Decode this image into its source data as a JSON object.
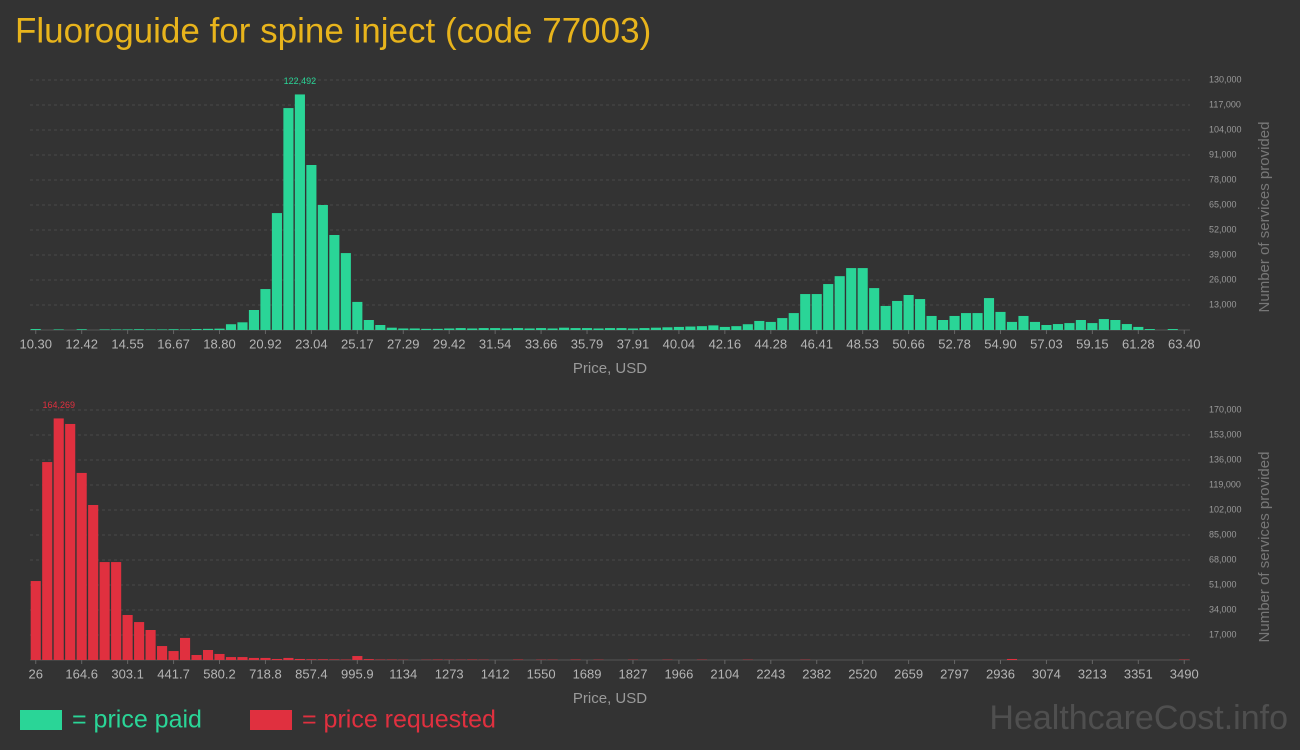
{
  "title": "Fluoroguide for spine inject (code 77003)",
  "watermark": "HealthcareCost.info",
  "chart_data": [
    {
      "type": "bar",
      "name": "= price paid",
      "color": "#2ad597",
      "xlabel": "Price, USD",
      "ylabel": "Number of services provided",
      "categories": [
        "10.30",
        null,
        null,
        null,
        "12.42",
        null,
        null,
        null,
        "14.55",
        null,
        null,
        null,
        "16.67",
        null,
        null,
        null,
        "18.80",
        null,
        null,
        null,
        "20.92",
        null,
        null,
        null,
        "23.04",
        null,
        null,
        null,
        "25.17",
        null,
        null,
        null,
        "27.29",
        null,
        null,
        null,
        "29.42",
        null,
        null,
        null,
        "31.54",
        null,
        null,
        null,
        "33.66",
        null,
        null,
        null,
        "35.79",
        null,
        null,
        null,
        "37.91",
        null,
        null,
        null,
        "40.04",
        null,
        null,
        null,
        "42.16",
        null,
        null,
        null,
        "44.28",
        null,
        null,
        null,
        "46.41",
        null,
        null,
        null,
        "48.53",
        null,
        null,
        null,
        "50.66",
        null,
        null,
        null,
        "52.78",
        null,
        null,
        null,
        "54.90",
        null,
        null,
        null,
        "57.03",
        null,
        null,
        null,
        "59.15",
        null,
        null,
        null,
        "61.28",
        null,
        null,
        null,
        "63.40"
      ],
      "values": [
        500,
        0,
        300,
        0,
        400,
        0,
        300,
        300,
        300,
        400,
        300,
        300,
        400,
        300,
        500,
        600,
        700,
        3000,
        4000,
        10400,
        21300,
        60800,
        115400,
        122492,
        85800,
        65000,
        49400,
        40000,
        14600,
        5200,
        2600,
        1200,
        800,
        800,
        600,
        600,
        800,
        1000,
        800,
        1000,
        1000,
        800,
        1000,
        800,
        1000,
        800,
        1200,
        1000,
        1000,
        800,
        1000,
        1000,
        800,
        1000,
        1200,
        1400,
        1600,
        1800,
        2000,
        2400,
        1600,
        2000,
        3000,
        4700,
        4200,
        6200,
        8800,
        18700,
        18700,
        23900,
        28000,
        32200,
        32200,
        21800,
        12500,
        15100,
        18200,
        16100,
        7300,
        5200,
        7300,
        8800,
        8800,
        16600,
        9400,
        4200,
        7300,
        4200,
        2600,
        3100,
        3600,
        5200,
        3600,
        5700,
        5200,
        3100,
        1600,
        500,
        0,
        500,
        0
      ],
      "value_labels": [
        null,
        null,
        null,
        null,
        null,
        null,
        null,
        null,
        null,
        null,
        null,
        null,
        null,
        null,
        null,
        null,
        null,
        null,
        null,
        null,
        null,
        null,
        null,
        "122,492",
        null,
        null,
        null,
        null,
        null,
        null,
        null,
        null,
        null,
        null,
        null,
        null,
        null,
        null,
        null,
        null,
        null,
        null,
        null,
        null,
        null,
        null,
        null,
        null,
        null,
        null,
        null,
        null,
        null,
        null,
        null,
        null,
        null,
        null,
        null,
        null,
        null,
        null,
        null,
        null,
        null,
        null,
        null,
        null,
        null,
        null,
        null,
        null,
        null,
        null,
        null,
        null,
        null,
        null,
        null,
        null,
        null,
        null,
        null,
        null,
        null,
        null,
        null,
        null,
        null,
        null,
        null,
        null,
        null,
        null,
        null,
        null,
        null,
        null,
        null,
        null,
        null
      ],
      "ylim": [
        0,
        130000
      ],
      "yticks": [
        {
          "value": 13000,
          "label": "13,000"
        },
        {
          "value": 26000,
          "label": "26,000"
        },
        {
          "value": 39000,
          "label": "39,000"
        },
        {
          "value": 52000,
          "label": "52,000"
        },
        {
          "value": 65000,
          "label": "65,000"
        },
        {
          "value": 78000,
          "label": "78,000"
        },
        {
          "value": 91000,
          "label": "91,000"
        },
        {
          "value": 104000,
          "label": "104,000"
        },
        {
          "value": 117000,
          "label": "117,000"
        },
        {
          "value": 130000,
          "label": "130,000"
        }
      ],
      "grid": true
    },
    {
      "type": "bar",
      "name": "= price requested",
      "color": "#e0303f",
      "xlabel": "Price, USD",
      "ylabel": "Number of services provided",
      "categories": [
        "26",
        null,
        null,
        null,
        "164.6",
        null,
        null,
        null,
        "303.1",
        null,
        null,
        null,
        "441.7",
        null,
        null,
        null,
        "580.2",
        null,
        null,
        null,
        "718.8",
        null,
        null,
        null,
        "857.4",
        null,
        null,
        null,
        "995.9",
        null,
        null,
        null,
        "1134",
        null,
        null,
        null,
        "1273",
        null,
        null,
        null,
        "1412",
        null,
        null,
        null,
        "1550",
        null,
        null,
        null,
        "1689",
        null,
        null,
        null,
        "1827",
        null,
        null,
        null,
        "1966",
        null,
        null,
        null,
        "2104",
        null,
        null,
        null,
        "2243",
        null,
        null,
        null,
        "2382",
        null,
        null,
        null,
        "2520",
        null,
        null,
        null,
        "2659",
        null,
        null,
        null,
        "2797",
        null,
        null,
        null,
        "2936",
        null,
        null,
        null,
        "3074",
        null,
        null,
        null,
        "3213",
        null,
        null,
        null,
        "3351",
        null,
        null,
        null,
        "3490"
      ],
      "values": [
        53700,
        134600,
        164269,
        160500,
        127200,
        105400,
        66600,
        66600,
        30600,
        25800,
        20400,
        9500,
        6100,
        15000,
        3400,
        6800,
        4100,
        2000,
        2000,
        1400,
        1400,
        700,
        1400,
        700,
        500,
        500,
        400,
        300,
        2700,
        600,
        300,
        300,
        200,
        0,
        200,
        300,
        200,
        200,
        300,
        200,
        0,
        0,
        300,
        0,
        200,
        200,
        0,
        300,
        0,
        200,
        0,
        0,
        200,
        0,
        0,
        200,
        0,
        0,
        200,
        0,
        0,
        0,
        200,
        0,
        0,
        0,
        0,
        200,
        0,
        0,
        0,
        0,
        0,
        0,
        0,
        0,
        0,
        0,
        0,
        0,
        0,
        0,
        0,
        0,
        0,
        700,
        0,
        0,
        0,
        0,
        0,
        0,
        0,
        0,
        0,
        0,
        0,
        0,
        0,
        0,
        300
      ],
      "value_labels": [
        null,
        null,
        "164,269",
        null,
        null,
        null,
        null,
        null,
        null,
        null,
        null,
        null,
        null,
        null,
        null,
        null,
        null,
        null,
        null,
        null,
        null,
        null,
        null,
        null,
        null,
        null,
        null,
        null,
        null,
        null,
        null,
        null,
        null,
        null,
        null,
        null,
        null,
        null,
        null,
        null,
        null,
        null,
        null,
        null,
        null,
        null,
        null,
        null,
        null,
        null,
        null,
        null,
        null,
        null,
        null,
        null,
        null,
        null,
        null,
        null,
        null,
        null,
        null,
        null,
        null,
        null,
        null,
        null,
        null,
        null,
        null,
        null,
        null,
        null,
        null,
        null,
        null,
        null,
        null,
        null,
        null,
        null,
        null,
        null,
        null,
        null,
        null,
        null,
        null,
        null,
        null,
        null,
        null,
        null,
        null,
        null,
        null,
        null,
        null,
        null,
        null
      ],
      "ylim": [
        0,
        170000
      ],
      "yticks": [
        {
          "value": 17000,
          "label": "17,000"
        },
        {
          "value": 34000,
          "label": "34,000"
        },
        {
          "value": 51000,
          "label": "51,000"
        },
        {
          "value": 68000,
          "label": "68,000"
        },
        {
          "value": 85000,
          "label": "85,000"
        },
        {
          "value": 102000,
          "label": "102,000"
        },
        {
          "value": 119000,
          "label": "119,000"
        },
        {
          "value": 136000,
          "label": "136,000"
        },
        {
          "value": 153000,
          "label": "153,000"
        },
        {
          "value": 170000,
          "label": "170,000"
        }
      ],
      "grid": true
    }
  ]
}
